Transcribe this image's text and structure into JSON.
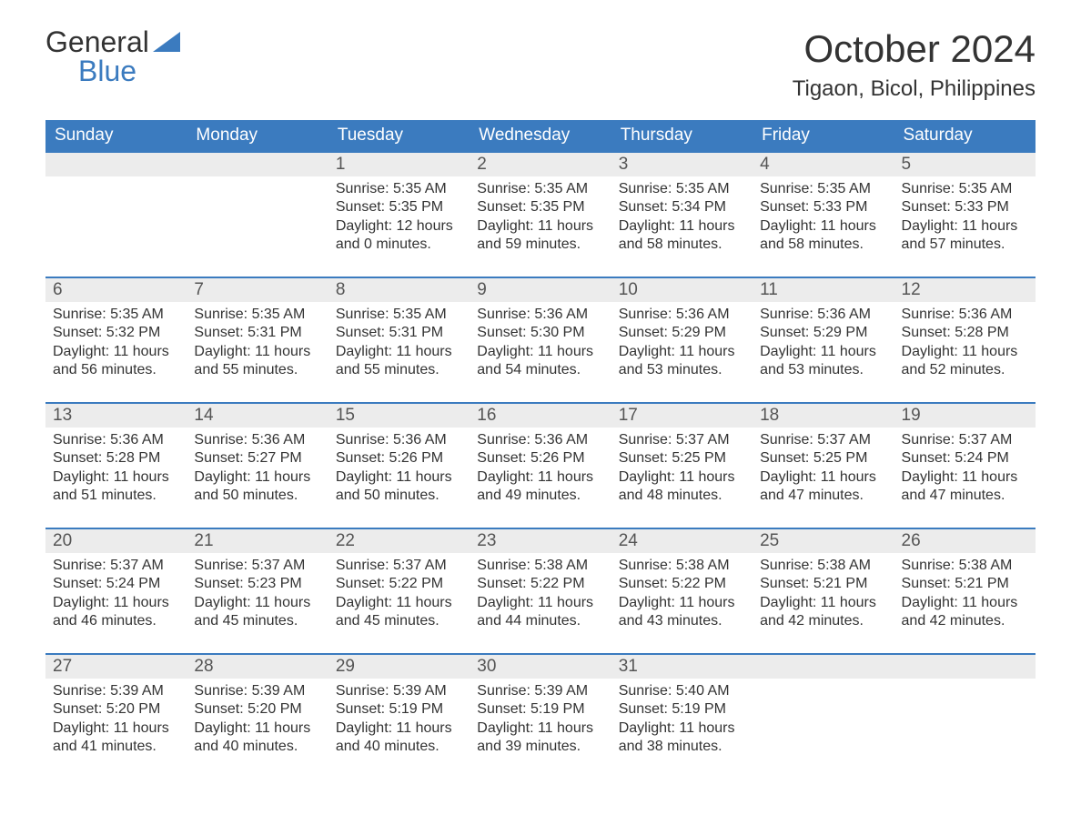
{
  "brand": {
    "line1": "General",
    "line2": "Blue"
  },
  "title": "October 2024",
  "location": "Tigaon, Bicol, Philippines",
  "colors": {
    "header_bg": "#3b7bbf",
    "header_text": "#ffffff",
    "daynum_bg": "#ececec",
    "row_border": "#3b7bbf",
    "body_text": "#333333",
    "logo_blue": "#3b7bbf"
  },
  "day_names": [
    "Sunday",
    "Monday",
    "Tuesday",
    "Wednesday",
    "Thursday",
    "Friday",
    "Saturday"
  ],
  "weeks": [
    [
      {
        "n": "",
        "lines": []
      },
      {
        "n": "",
        "lines": []
      },
      {
        "n": "1",
        "lines": [
          "Sunrise: 5:35 AM",
          "Sunset: 5:35 PM",
          "Daylight: 12 hours",
          "and 0 minutes."
        ]
      },
      {
        "n": "2",
        "lines": [
          "Sunrise: 5:35 AM",
          "Sunset: 5:35 PM",
          "Daylight: 11 hours",
          "and 59 minutes."
        ]
      },
      {
        "n": "3",
        "lines": [
          "Sunrise: 5:35 AM",
          "Sunset: 5:34 PM",
          "Daylight: 11 hours",
          "and 58 minutes."
        ]
      },
      {
        "n": "4",
        "lines": [
          "Sunrise: 5:35 AM",
          "Sunset: 5:33 PM",
          "Daylight: 11 hours",
          "and 58 minutes."
        ]
      },
      {
        "n": "5",
        "lines": [
          "Sunrise: 5:35 AM",
          "Sunset: 5:33 PM",
          "Daylight: 11 hours",
          "and 57 minutes."
        ]
      }
    ],
    [
      {
        "n": "6",
        "lines": [
          "Sunrise: 5:35 AM",
          "Sunset: 5:32 PM",
          "Daylight: 11 hours",
          "and 56 minutes."
        ]
      },
      {
        "n": "7",
        "lines": [
          "Sunrise: 5:35 AM",
          "Sunset: 5:31 PM",
          "Daylight: 11 hours",
          "and 55 minutes."
        ]
      },
      {
        "n": "8",
        "lines": [
          "Sunrise: 5:35 AM",
          "Sunset: 5:31 PM",
          "Daylight: 11 hours",
          "and 55 minutes."
        ]
      },
      {
        "n": "9",
        "lines": [
          "Sunrise: 5:36 AM",
          "Sunset: 5:30 PM",
          "Daylight: 11 hours",
          "and 54 minutes."
        ]
      },
      {
        "n": "10",
        "lines": [
          "Sunrise: 5:36 AM",
          "Sunset: 5:29 PM",
          "Daylight: 11 hours",
          "and 53 minutes."
        ]
      },
      {
        "n": "11",
        "lines": [
          "Sunrise: 5:36 AM",
          "Sunset: 5:29 PM",
          "Daylight: 11 hours",
          "and 53 minutes."
        ]
      },
      {
        "n": "12",
        "lines": [
          "Sunrise: 5:36 AM",
          "Sunset: 5:28 PM",
          "Daylight: 11 hours",
          "and 52 minutes."
        ]
      }
    ],
    [
      {
        "n": "13",
        "lines": [
          "Sunrise: 5:36 AM",
          "Sunset: 5:28 PM",
          "Daylight: 11 hours",
          "and 51 minutes."
        ]
      },
      {
        "n": "14",
        "lines": [
          "Sunrise: 5:36 AM",
          "Sunset: 5:27 PM",
          "Daylight: 11 hours",
          "and 50 minutes."
        ]
      },
      {
        "n": "15",
        "lines": [
          "Sunrise: 5:36 AM",
          "Sunset: 5:26 PM",
          "Daylight: 11 hours",
          "and 50 minutes."
        ]
      },
      {
        "n": "16",
        "lines": [
          "Sunrise: 5:36 AM",
          "Sunset: 5:26 PM",
          "Daylight: 11 hours",
          "and 49 minutes."
        ]
      },
      {
        "n": "17",
        "lines": [
          "Sunrise: 5:37 AM",
          "Sunset: 5:25 PM",
          "Daylight: 11 hours",
          "and 48 minutes."
        ]
      },
      {
        "n": "18",
        "lines": [
          "Sunrise: 5:37 AM",
          "Sunset: 5:25 PM",
          "Daylight: 11 hours",
          "and 47 minutes."
        ]
      },
      {
        "n": "19",
        "lines": [
          "Sunrise: 5:37 AM",
          "Sunset: 5:24 PM",
          "Daylight: 11 hours",
          "and 47 minutes."
        ]
      }
    ],
    [
      {
        "n": "20",
        "lines": [
          "Sunrise: 5:37 AM",
          "Sunset: 5:24 PM",
          "Daylight: 11 hours",
          "and 46 minutes."
        ]
      },
      {
        "n": "21",
        "lines": [
          "Sunrise: 5:37 AM",
          "Sunset: 5:23 PM",
          "Daylight: 11 hours",
          "and 45 minutes."
        ]
      },
      {
        "n": "22",
        "lines": [
          "Sunrise: 5:37 AM",
          "Sunset: 5:22 PM",
          "Daylight: 11 hours",
          "and 45 minutes."
        ]
      },
      {
        "n": "23",
        "lines": [
          "Sunrise: 5:38 AM",
          "Sunset: 5:22 PM",
          "Daylight: 11 hours",
          "and 44 minutes."
        ]
      },
      {
        "n": "24",
        "lines": [
          "Sunrise: 5:38 AM",
          "Sunset: 5:22 PM",
          "Daylight: 11 hours",
          "and 43 minutes."
        ]
      },
      {
        "n": "25",
        "lines": [
          "Sunrise: 5:38 AM",
          "Sunset: 5:21 PM",
          "Daylight: 11 hours",
          "and 42 minutes."
        ]
      },
      {
        "n": "26",
        "lines": [
          "Sunrise: 5:38 AM",
          "Sunset: 5:21 PM",
          "Daylight: 11 hours",
          "and 42 minutes."
        ]
      }
    ],
    [
      {
        "n": "27",
        "lines": [
          "Sunrise: 5:39 AM",
          "Sunset: 5:20 PM",
          "Daylight: 11 hours",
          "and 41 minutes."
        ]
      },
      {
        "n": "28",
        "lines": [
          "Sunrise: 5:39 AM",
          "Sunset: 5:20 PM",
          "Daylight: 11 hours",
          "and 40 minutes."
        ]
      },
      {
        "n": "29",
        "lines": [
          "Sunrise: 5:39 AM",
          "Sunset: 5:19 PM",
          "Daylight: 11 hours",
          "and 40 minutes."
        ]
      },
      {
        "n": "30",
        "lines": [
          "Sunrise: 5:39 AM",
          "Sunset: 5:19 PM",
          "Daylight: 11 hours",
          "and 39 minutes."
        ]
      },
      {
        "n": "31",
        "lines": [
          "Sunrise: 5:40 AM",
          "Sunset: 5:19 PM",
          "Daylight: 11 hours",
          "and 38 minutes."
        ]
      },
      {
        "n": "",
        "lines": []
      },
      {
        "n": "",
        "lines": []
      }
    ]
  ]
}
